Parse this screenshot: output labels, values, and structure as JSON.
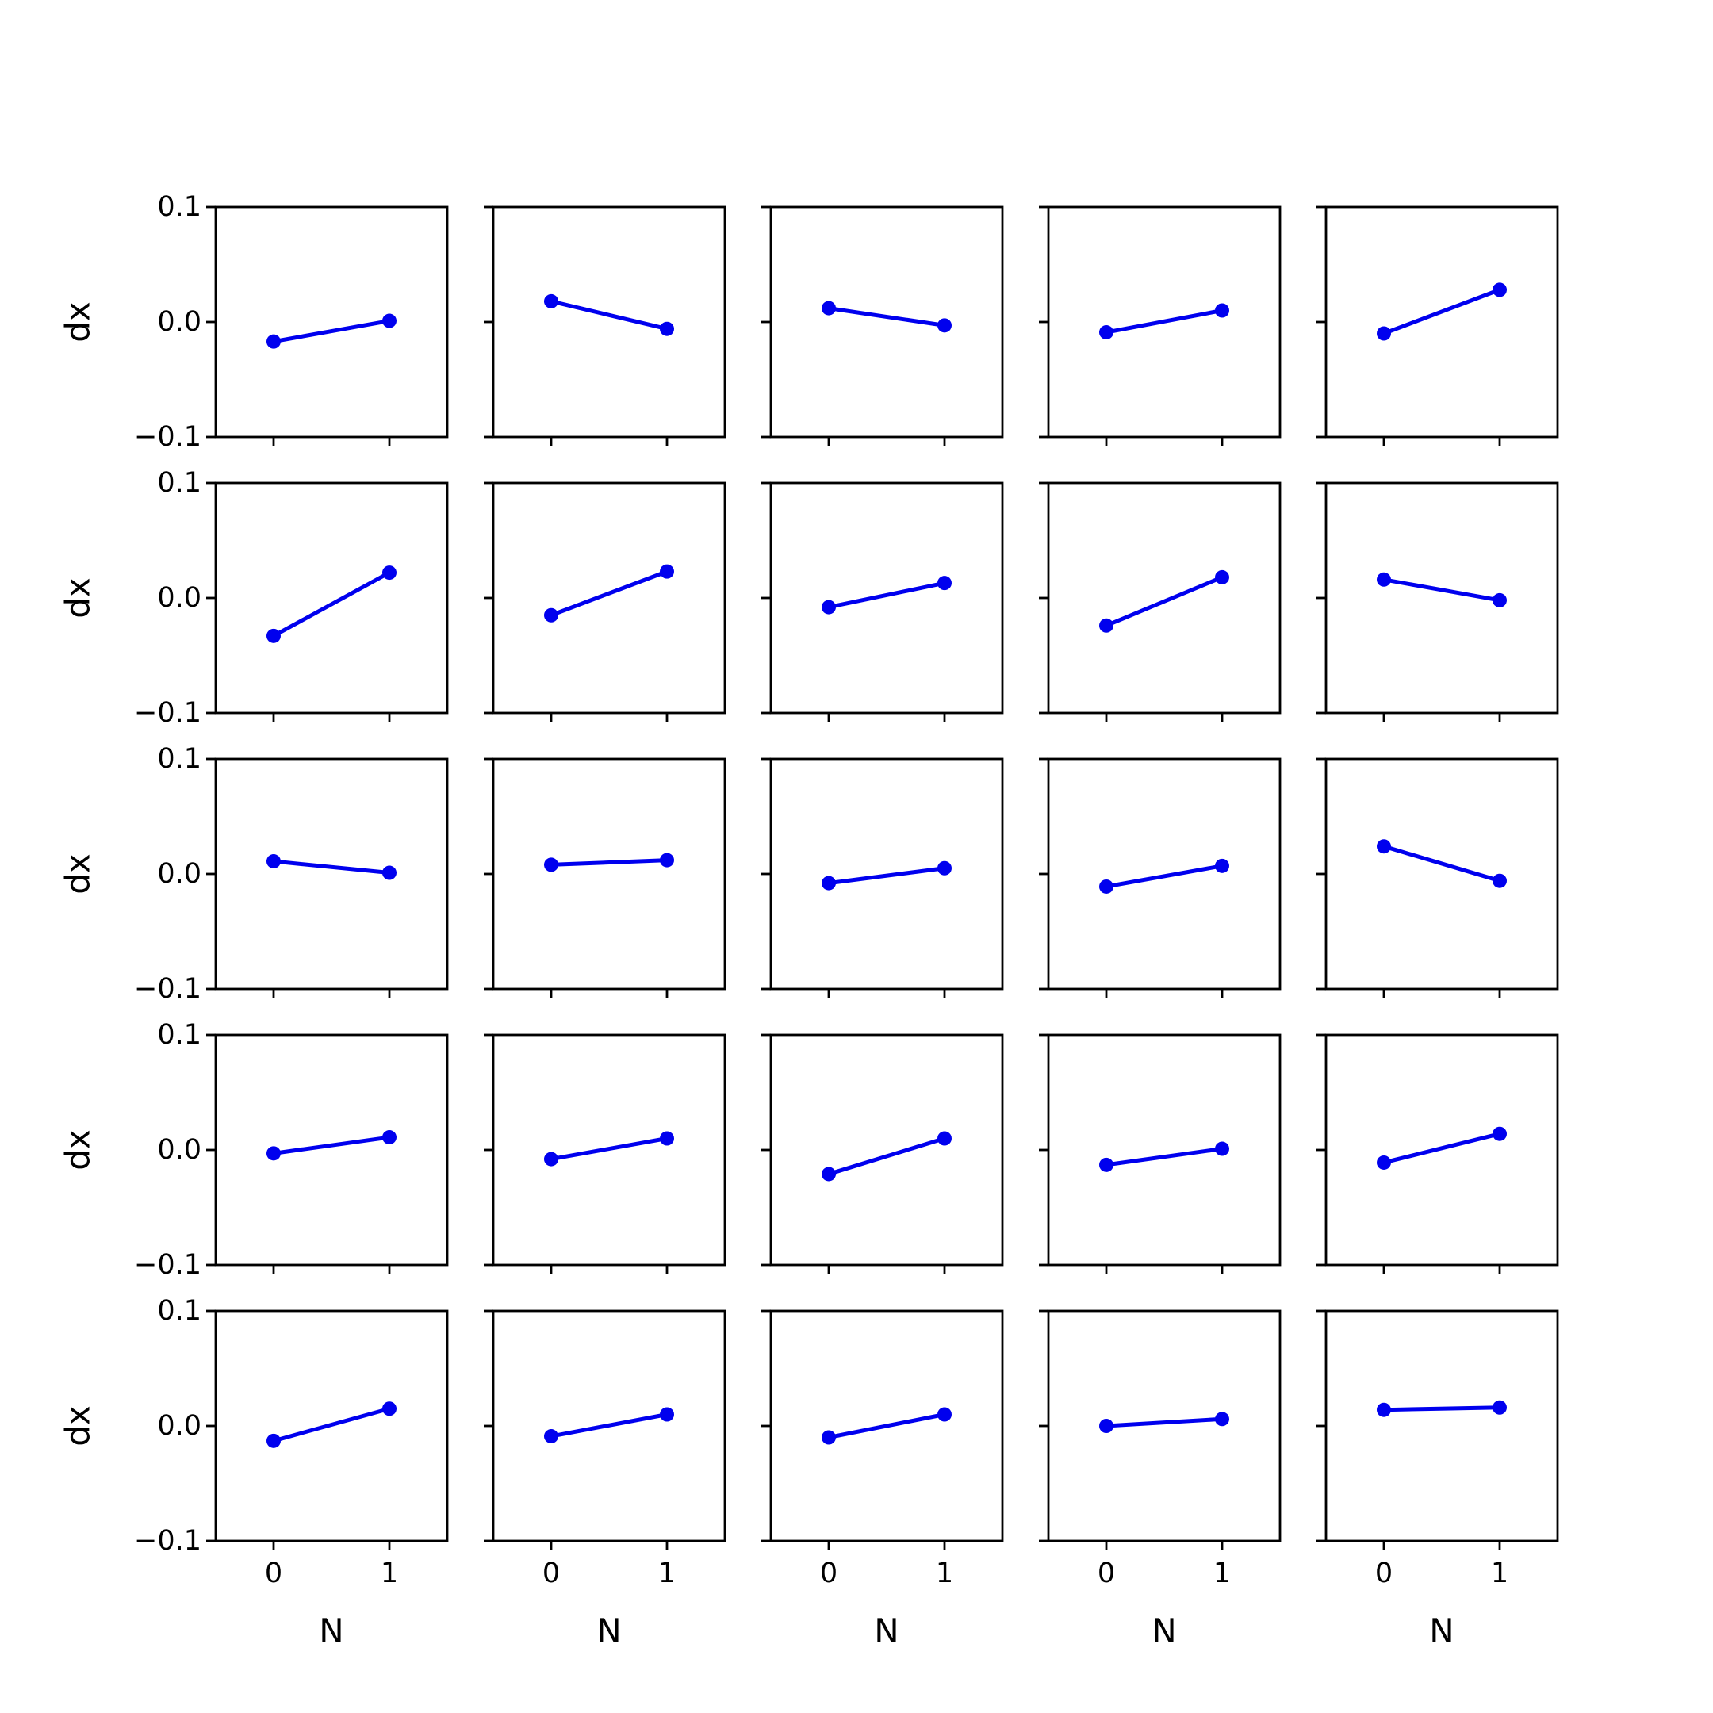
{
  "chart_data": {
    "type": "line",
    "layout": "5x5 grid of small multiples",
    "x": [
      0,
      1
    ],
    "xlabel": "N",
    "ylabel": "dx",
    "xticks": [
      "0",
      "1"
    ],
    "yticks": [
      "0.1",
      "0.0",
      "−0.1"
    ],
    "xlim": [
      -0.5,
      1.5
    ],
    "ylim": [
      -0.1,
      0.1
    ],
    "grid": false,
    "line_color": "#0000ee",
    "panels": [
      {
        "values": [
          -0.017,
          0.001
        ]
      },
      {
        "values": [
          0.018,
          -0.006
        ]
      },
      {
        "values": [
          0.012,
          -0.003
        ]
      },
      {
        "values": [
          -0.009,
          0.01
        ]
      },
      {
        "values": [
          -0.01,
          0.028
        ]
      },
      {
        "values": [
          -0.033,
          0.022
        ]
      },
      {
        "values": [
          -0.015,
          0.023
        ]
      },
      {
        "values": [
          -0.008,
          0.013
        ]
      },
      {
        "values": [
          -0.024,
          0.018
        ]
      },
      {
        "values": [
          0.016,
          -0.002
        ]
      },
      {
        "values": [
          0.011,
          0.001
        ]
      },
      {
        "values": [
          0.008,
          0.012
        ]
      },
      {
        "values": [
          -0.008,
          0.005
        ]
      },
      {
        "values": [
          -0.011,
          0.007
        ]
      },
      {
        "values": [
          0.024,
          -0.006
        ]
      },
      {
        "values": [
          -0.003,
          0.011
        ]
      },
      {
        "values": [
          -0.008,
          0.01
        ]
      },
      {
        "values": [
          -0.021,
          0.01
        ]
      },
      {
        "values": [
          -0.013,
          0.001
        ]
      },
      {
        "values": [
          -0.011,
          0.014
        ]
      },
      {
        "values": [
          -0.013,
          0.015
        ]
      },
      {
        "values": [
          -0.009,
          0.01
        ]
      },
      {
        "values": [
          -0.01,
          0.01
        ]
      },
      {
        "values": [
          0.0,
          0.006
        ]
      },
      {
        "values": [
          0.014,
          0.016
        ]
      }
    ]
  }
}
